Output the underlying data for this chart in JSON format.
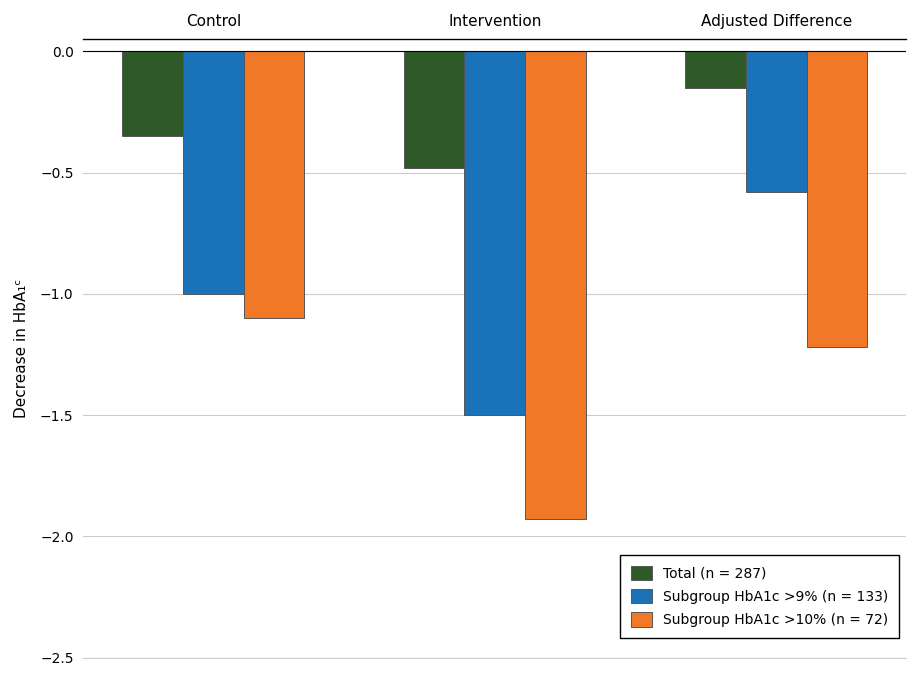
{
  "groups": [
    "Control",
    "Intervention",
    "Adjusted Difference"
  ],
  "series": [
    {
      "label": "Total (n = 287)",
      "color": "#2d5a27",
      "values": [
        -0.35,
        -0.48,
        -0.15
      ]
    },
    {
      "label": "Subgroup HbA1c >9% (n = 133)",
      "color": "#1a72b8",
      "values": [
        -1.0,
        -1.5,
        -0.58
      ]
    },
    {
      "label": "Subgroup HbA1c >10% (n = 72)",
      "color": "#f07826",
      "values": [
        -1.1,
        -1.93,
        -1.22
      ]
    }
  ],
  "ylabel": "Decrease in HbA₁ᶜ",
  "ylim": [
    -2.5,
    0.05
  ],
  "yticks": [
    0.0,
    -0.5,
    -1.0,
    -1.5,
    -2.0,
    -2.5
  ],
  "background_color": "#ffffff",
  "grid_color": "#cccccc",
  "bar_width": 0.28,
  "group_positions": [
    0.0,
    1.3,
    2.6
  ]
}
